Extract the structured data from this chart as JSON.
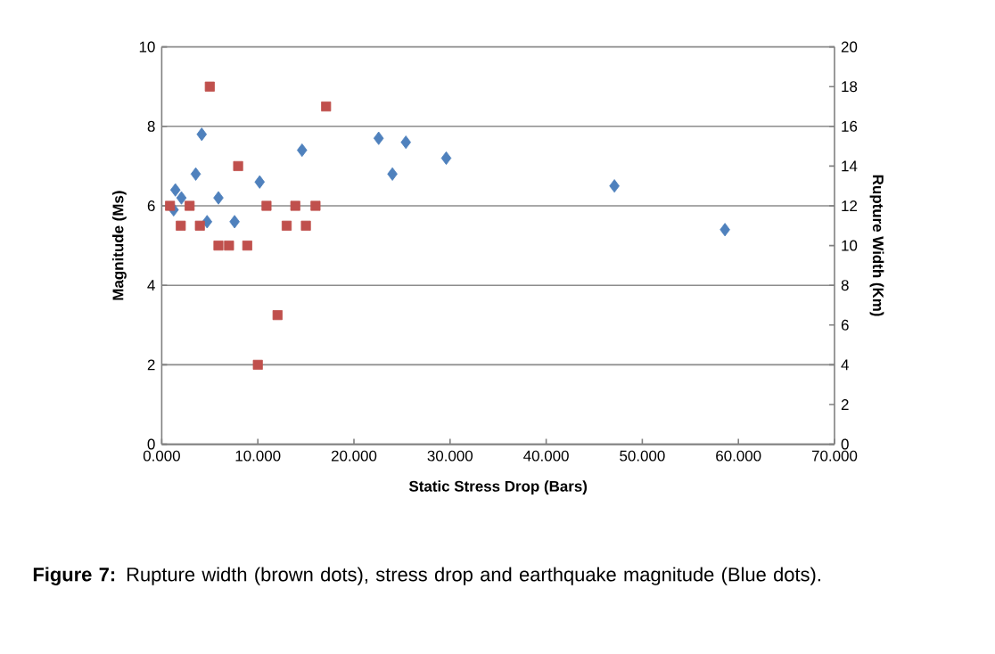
{
  "chart_data": {
    "type": "scatter",
    "xlabel": "Static Stress Drop (Bars)",
    "ylabel": "Magnitude (Ms)",
    "y2label": "Rupture Width (Km)",
    "series": [
      {
        "color": "#4f81bd",
        "marker": "diamond",
        "x": [
          1.42,
          2.05,
          1.24,
          4.16,
          3.54,
          4.72,
          5.9,
          7.58,
          10.19,
          14.6,
          22.57,
          24.0,
          25.4,
          29.6,
          47.1,
          58.6
        ],
        "values": [
          6.4,
          6.2,
          5.9,
          7.8,
          6.8,
          5.6,
          6.2,
          5.6,
          6.6,
          7.4,
          7.7,
          6.8,
          7.6,
          7.2,
          6.5,
          5.4
        ]
      },
      {
        "color": "#c0504d",
        "marker": "square",
        "axis": "y2",
        "x": [
          0.86,
          2.9,
          1.98,
          3.97,
          5.0,
          5.9,
          7.0,
          7.95,
          8.9,
          10.0,
          10.9,
          12.05,
          13.0,
          13.9,
          15.0,
          16.0,
          17.1
        ],
        "values": [
          12,
          12,
          11,
          11,
          18,
          10,
          10,
          14,
          10,
          4,
          12,
          6.5,
          11,
          12,
          11,
          12,
          17
        ]
      }
    ],
    "xlim": [
      0,
      70
    ],
    "xticks": [
      {
        "value": 0,
        "label": "0.000"
      },
      {
        "value": 10,
        "label": "10.000"
      },
      {
        "value": 20,
        "label": "20.000"
      },
      {
        "value": 30,
        "label": "30.000"
      },
      {
        "value": 40,
        "label": "40.000"
      },
      {
        "value": 50,
        "label": "50.000"
      },
      {
        "value": 60,
        "label": "60.000"
      },
      {
        "value": 70,
        "label": "70.000"
      }
    ],
    "ylim": [
      0,
      10
    ],
    "yticks": [
      0,
      2,
      4,
      6,
      8,
      10
    ],
    "y2lim": [
      0,
      20
    ],
    "y2ticks": [
      0,
      2,
      4,
      6,
      8,
      10,
      12,
      14,
      16,
      18,
      20
    ],
    "grid": "y",
    "annotations": [
      "**Figure 7:** Rupture width (brown dots), stress drop and earthquake magnitude (Blue dots)."
    ]
  }
}
